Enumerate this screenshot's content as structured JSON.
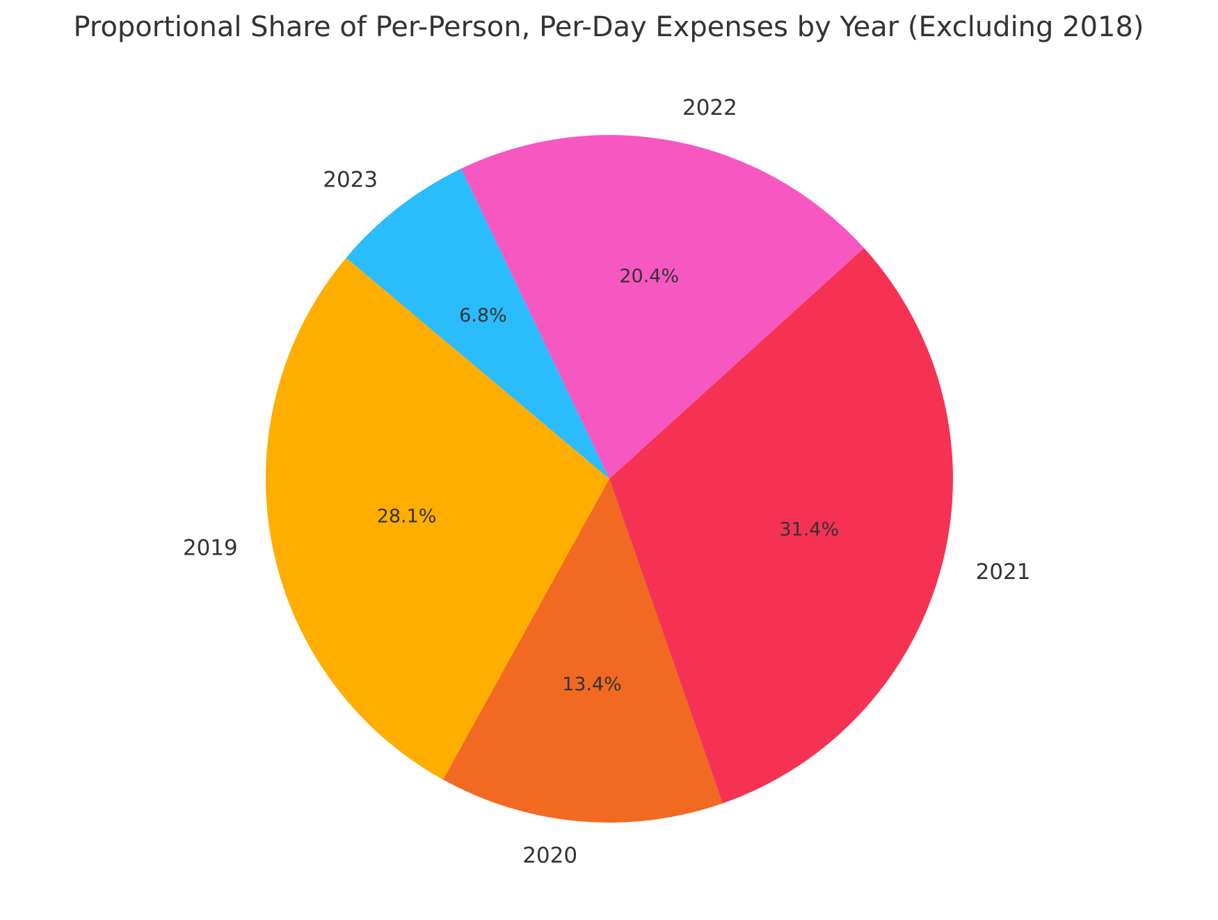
{
  "chart_data": {
    "type": "pie",
    "title": "Proportional Share of Per-Person, Per-Day Expenses by Year (Excluding 2018)",
    "labels": [
      "2019",
      "2020",
      "2021",
      "2022",
      "2023"
    ],
    "values": [
      28.1,
      13.4,
      31.4,
      20.4,
      6.8
    ],
    "value_labels": [
      "28.1%",
      "13.4%",
      "31.4%",
      "20.4%",
      "6.8%"
    ],
    "colors": [
      "#FFAE00",
      "#F26A21",
      "#F53254",
      "#F757C1",
      "#2ABCFD"
    ],
    "start_angle_deg": 140,
    "direction": "counterclockwise",
    "legend": "none",
    "grid": false
  }
}
